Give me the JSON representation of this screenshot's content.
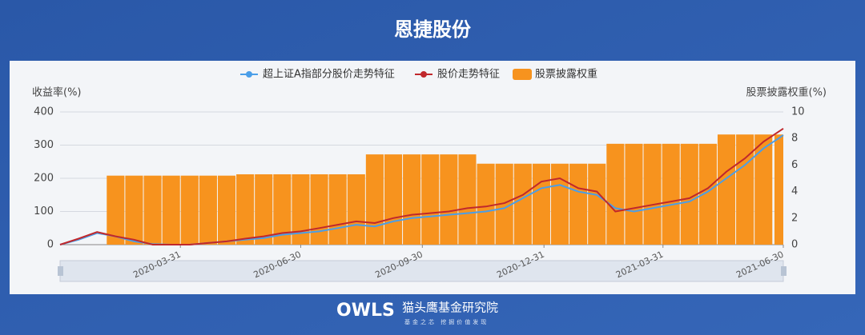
{
  "chart_data": {
    "type": "combo",
    "title": "恩捷股份",
    "y_label": "收益率(%)",
    "y2_label": "股票披露权重(%)",
    "x": [
      "2019-12-31",
      "2020-01-14",
      "2020-01-28",
      "2020-02-11",
      "2020-02-25",
      "2020-03-10",
      "2020-03-24",
      "2020-04-07",
      "2020-04-21",
      "2020-05-05",
      "2020-05-19",
      "2020-06-02",
      "2020-06-16",
      "2020-06-30",
      "2020-07-14",
      "2020-07-28",
      "2020-08-11",
      "2020-08-25",
      "2020-09-08",
      "2020-09-22",
      "2020-10-06",
      "2020-10-20",
      "2020-11-03",
      "2020-11-17",
      "2020-12-01",
      "2020-12-15",
      "2020-12-29",
      "2021-01-12",
      "2021-01-26",
      "2021-02-09",
      "2021-02-23",
      "2021-03-09",
      "2021-03-23",
      "2021-04-06",
      "2021-04-20",
      "2021-05-04",
      "2021-05-18",
      "2021-06-01",
      "2021-06-15",
      "2021-06-30"
    ],
    "xlim": [
      "2019-12-31",
      "2021-06-30"
    ],
    "xticks": [
      "2020-03-31",
      "2020-06-30",
      "2020-09-30",
      "2020-12-31",
      "2021-03-31",
      "2021-06-30"
    ],
    "ylim": [
      0,
      400
    ],
    "yticks": [
      0,
      100,
      200,
      300,
      400
    ],
    "y2lim": [
      0,
      10
    ],
    "y2ticks": [
      0,
      2,
      4,
      6,
      8,
      10
    ],
    "grid": true,
    "legend": "top",
    "series": [
      {
        "name": "超上证A指部分股价走势特征",
        "type": "line",
        "color": "#4a9ee8",
        "values": [
          0,
          15,
          35,
          25,
          10,
          2,
          0,
          0,
          5,
          10,
          15,
          20,
          30,
          35,
          40,
          50,
          60,
          55,
          70,
          80,
          85,
          90,
          95,
          100,
          110,
          140,
          170,
          180,
          160,
          150,
          110,
          100,
          110,
          120,
          130,
          160,
          200,
          240,
          290,
          330
        ]
      },
      {
        "name": "股价走势特征",
        "type": "line",
        "color": "#c0282c",
        "values": [
          0,
          18,
          38,
          25,
          15,
          0,
          0,
          0,
          5,
          10,
          18,
          25,
          35,
          40,
          50,
          60,
          70,
          65,
          80,
          90,
          95,
          100,
          110,
          115,
          125,
          150,
          190,
          200,
          170,
          160,
          100,
          110,
          120,
          130,
          140,
          170,
          220,
          260,
          310,
          350
        ]
      },
      {
        "name": "股票披露权重",
        "type": "bar",
        "axis": "y2",
        "color": "#f7931e",
        "values": [
          null,
          null,
          null,
          5.2,
          5.2,
          5.2,
          5.2,
          5.2,
          5.2,
          5.2,
          5.3,
          5.3,
          5.3,
          5.3,
          5.3,
          5.3,
          5.3,
          6.8,
          6.8,
          6.8,
          6.8,
          6.8,
          6.8,
          6.1,
          6.1,
          6.1,
          6.1,
          6.1,
          6.1,
          6.1,
          7.6,
          7.6,
          7.6,
          7.6,
          7.6,
          7.6,
          8.3,
          8.3,
          8.3,
          8.3
        ]
      }
    ]
  },
  "footer": {
    "brand": "OWLS",
    "name": "猫头鹰基金研究院",
    "slogan": "基金之芯 挖掘价值发现"
  }
}
